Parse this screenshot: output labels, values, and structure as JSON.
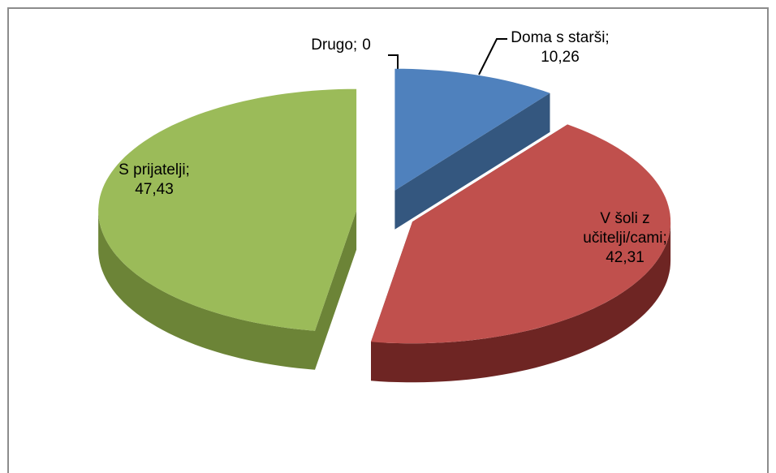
{
  "chart_data": {
    "type": "pie",
    "categories": [
      "Doma s starši;",
      "V šoli z učitelji/cami;",
      "S prijatelji;",
      "Drugo;"
    ],
    "values": [
      10.26,
      42.31,
      47.43,
      0
    ],
    "value_labels": [
      "10,26",
      "42,31",
      "47,43",
      "0"
    ],
    "colors": [
      "#4f81bd",
      "#c0504d",
      "#9bbb59",
      "#8064a2"
    ],
    "side_colors": [
      "#34577f",
      "#6e2523",
      "#6c8437",
      "#55406f"
    ]
  }
}
